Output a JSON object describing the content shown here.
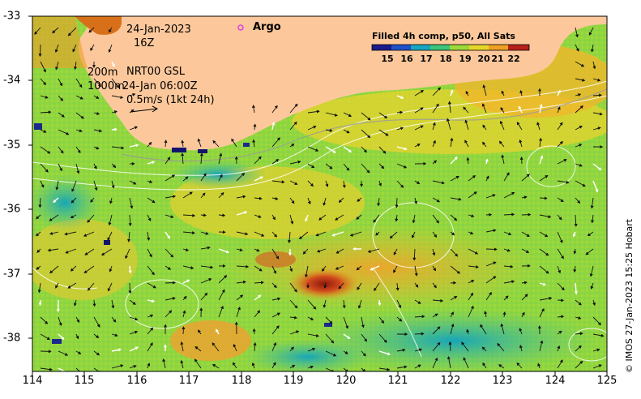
{
  "map": {
    "timestamp_date": "24-Jan-2023",
    "timestamp_hour": "16Z",
    "depth_label_1": "200m",
    "depth_label_2": "1000m",
    "source_label": "NRT00 GSL",
    "source_time": "24-Jan 06:00Z",
    "scale_label": "0.5m/s (1kt 24h)",
    "argo_label": "Argo",
    "credit": "© IMOS 27-Jan-2023 15:25 Hobart",
    "colorbar": {
      "title": "Filled 4h comp, p50, All Sats",
      "labels": [
        "15",
        "16",
        "17",
        "18",
        "19",
        "20",
        "21",
        "22"
      ]
    },
    "x_ticks": [
      "114",
      "115",
      "116",
      "117",
      "118",
      "119",
      "120",
      "121",
      "122",
      "123",
      "124",
      "125"
    ],
    "y_ticks": [
      "-33",
      "-34",
      "-35",
      "-36",
      "-37",
      "-38"
    ],
    "colors": {
      "land": "#fcc89b",
      "warm": "#c0301c",
      "mid": "#9bd838",
      "cool": "#22aaa8",
      "argo_marker": "#e040e0"
    }
  }
}
